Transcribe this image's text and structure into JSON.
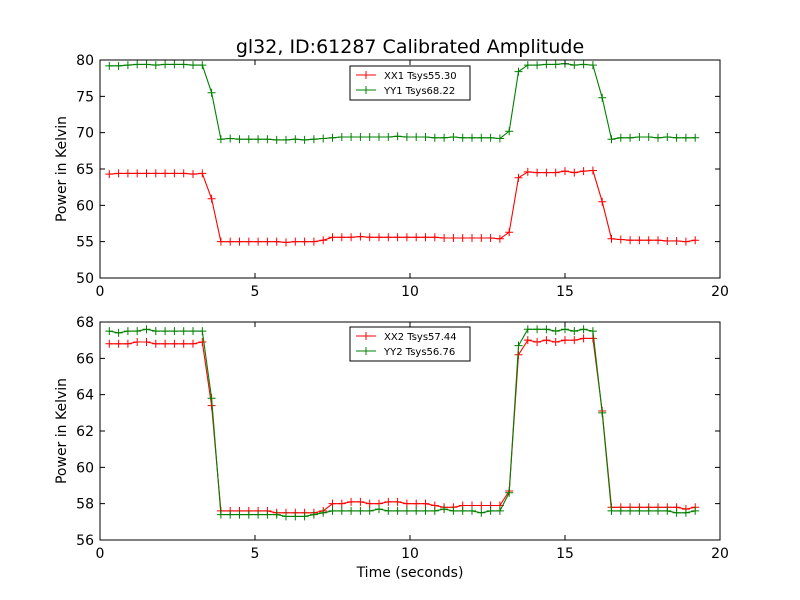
{
  "title": "gl32, ID:61287 Calibrated Amplitude",
  "xlabel": "Time (seconds)",
  "chart_data": [
    {
      "type": "line",
      "xlabel": "",
      "ylabel": "Power in Kelvin",
      "xlim": [
        0,
        20
      ],
      "ylim": [
        50,
        80
      ],
      "xticks": [
        0,
        5,
        10,
        15,
        20
      ],
      "yticks": [
        50,
        55,
        60,
        65,
        70,
        75,
        80
      ],
      "grid": false,
      "legend": "top-center",
      "series": [
        {
          "name": "XX1 Tsys55.30",
          "color": "#ff0000",
          "x": [
            0.3,
            0.6,
            0.9,
            1.2,
            1.5,
            1.8,
            2.1,
            2.4,
            2.7,
            3.0,
            3.3,
            3.6,
            3.9,
            4.2,
            4.5,
            4.8,
            5.1,
            5.4,
            5.7,
            6.0,
            6.3,
            6.6,
            6.9,
            7.2,
            7.5,
            7.8,
            8.1,
            8.4,
            8.7,
            9.0,
            9.3,
            9.6,
            9.9,
            10.2,
            10.5,
            10.8,
            11.1,
            11.4,
            11.7,
            12.0,
            12.3,
            12.6,
            12.9,
            13.2,
            13.5,
            13.8,
            14.1,
            14.4,
            14.7,
            15.0,
            15.3,
            15.6,
            15.9,
            16.2,
            16.5,
            16.8,
            17.1,
            17.4,
            17.7,
            18.0,
            18.3,
            18.6,
            18.9,
            19.2
          ],
          "y": [
            64.3,
            64.4,
            64.4,
            64.4,
            64.4,
            64.4,
            64.4,
            64.4,
            64.4,
            64.3,
            64.4,
            60.9,
            55.0,
            55.0,
            55.0,
            55.0,
            55.0,
            55.0,
            55.0,
            54.9,
            55.0,
            55.0,
            55.0,
            55.2,
            55.6,
            55.6,
            55.6,
            55.7,
            55.6,
            55.6,
            55.6,
            55.6,
            55.6,
            55.6,
            55.6,
            55.6,
            55.5,
            55.5,
            55.5,
            55.5,
            55.5,
            55.5,
            55.4,
            56.3,
            63.8,
            64.6,
            64.5,
            64.5,
            64.5,
            64.7,
            64.5,
            64.7,
            64.8,
            60.5,
            55.4,
            55.3,
            55.2,
            55.2,
            55.2,
            55.2,
            55.1,
            55.1,
            55.0,
            55.2
          ]
        },
        {
          "name": "YY1 Tsys68.22",
          "color": "#008000",
          "x": [
            0.3,
            0.6,
            0.9,
            1.2,
            1.5,
            1.8,
            2.1,
            2.4,
            2.7,
            3.0,
            3.3,
            3.6,
            3.9,
            4.2,
            4.5,
            4.8,
            5.1,
            5.4,
            5.7,
            6.0,
            6.3,
            6.6,
            6.9,
            7.2,
            7.5,
            7.8,
            8.1,
            8.4,
            8.7,
            9.0,
            9.3,
            9.6,
            9.9,
            10.2,
            10.5,
            10.8,
            11.1,
            11.4,
            11.7,
            12.0,
            12.3,
            12.6,
            12.9,
            13.2,
            13.5,
            13.8,
            14.1,
            14.4,
            14.7,
            15.0,
            15.3,
            15.6,
            15.9,
            16.2,
            16.5,
            16.8,
            17.1,
            17.4,
            17.7,
            18.0,
            18.3,
            18.6,
            18.9,
            19.2
          ],
          "y": [
            79.2,
            79.2,
            79.3,
            79.4,
            79.4,
            79.3,
            79.4,
            79.4,
            79.4,
            79.3,
            79.3,
            75.5,
            69.1,
            69.2,
            69.1,
            69.1,
            69.1,
            69.1,
            69.0,
            69.0,
            69.1,
            69.0,
            69.1,
            69.2,
            69.3,
            69.4,
            69.4,
            69.4,
            69.4,
            69.4,
            69.4,
            69.5,
            69.4,
            69.4,
            69.4,
            69.3,
            69.3,
            69.4,
            69.3,
            69.3,
            69.3,
            69.3,
            69.2,
            70.2,
            78.4,
            79.3,
            79.3,
            79.4,
            79.4,
            79.5,
            79.3,
            79.4,
            79.3,
            74.8,
            69.1,
            69.3,
            69.3,
            69.4,
            69.4,
            69.3,
            69.4,
            69.3,
            69.3,
            69.3
          ]
        }
      ]
    },
    {
      "type": "line",
      "xlabel": "Time (seconds)",
      "ylabel": "Power in Kelvin",
      "xlim": [
        0,
        20
      ],
      "ylim": [
        56,
        68
      ],
      "xticks": [
        0,
        5,
        10,
        15,
        20
      ],
      "yticks": [
        56,
        58,
        60,
        62,
        64,
        66,
        68
      ],
      "grid": false,
      "legend": "top-center",
      "series": [
        {
          "name": "XX2 Tsys57.44",
          "color": "#ff0000",
          "x": [
            0.3,
            0.6,
            0.9,
            1.2,
            1.5,
            1.8,
            2.1,
            2.4,
            2.7,
            3.0,
            3.3,
            3.6,
            3.9,
            4.2,
            4.5,
            4.8,
            5.1,
            5.4,
            5.7,
            6.0,
            6.3,
            6.6,
            6.9,
            7.2,
            7.5,
            7.8,
            8.1,
            8.4,
            8.7,
            9.0,
            9.3,
            9.6,
            9.9,
            10.2,
            10.5,
            10.8,
            11.1,
            11.4,
            11.7,
            12.0,
            12.3,
            12.6,
            12.9,
            13.2,
            13.5,
            13.8,
            14.1,
            14.4,
            14.7,
            15.0,
            15.3,
            15.6,
            15.9,
            16.2,
            16.5,
            16.8,
            17.1,
            17.4,
            17.7,
            18.0,
            18.3,
            18.6,
            18.9,
            19.2
          ],
          "y": [
            66.8,
            66.8,
            66.8,
            66.9,
            66.9,
            66.8,
            66.8,
            66.8,
            66.8,
            66.8,
            66.9,
            63.4,
            57.6,
            57.6,
            57.6,
            57.6,
            57.6,
            57.6,
            57.5,
            57.5,
            57.5,
            57.5,
            57.5,
            57.6,
            58.0,
            58.0,
            58.1,
            58.1,
            58.0,
            58.0,
            58.1,
            58.1,
            58.0,
            58.0,
            58.0,
            57.9,
            57.8,
            57.8,
            57.9,
            57.9,
            57.9,
            57.9,
            57.9,
            58.7,
            66.2,
            67.0,
            66.9,
            67.0,
            66.9,
            67.0,
            67.0,
            67.1,
            67.1,
            63.1,
            57.8,
            57.8,
            57.8,
            57.8,
            57.8,
            57.8,
            57.8,
            57.8,
            57.7,
            57.8
          ]
        },
        {
          "name": "YY2 Tsys56.76",
          "color": "#008000",
          "x": [
            0.3,
            0.6,
            0.9,
            1.2,
            1.5,
            1.8,
            2.1,
            2.4,
            2.7,
            3.0,
            3.3,
            3.6,
            3.9,
            4.2,
            4.5,
            4.8,
            5.1,
            5.4,
            5.7,
            6.0,
            6.3,
            6.6,
            6.9,
            7.2,
            7.5,
            7.8,
            8.1,
            8.4,
            8.7,
            9.0,
            9.3,
            9.6,
            9.9,
            10.2,
            10.5,
            10.8,
            11.1,
            11.4,
            11.7,
            12.0,
            12.3,
            12.6,
            12.9,
            13.2,
            13.5,
            13.8,
            14.1,
            14.4,
            14.7,
            15.0,
            15.3,
            15.6,
            15.9,
            16.2,
            16.5,
            16.8,
            17.1,
            17.4,
            17.7,
            18.0,
            18.3,
            18.6,
            18.9,
            19.2
          ],
          "y": [
            67.5,
            67.4,
            67.5,
            67.5,
            67.6,
            67.5,
            67.5,
            67.5,
            67.5,
            67.5,
            67.5,
            63.8,
            57.4,
            57.4,
            57.4,
            57.4,
            57.4,
            57.4,
            57.4,
            57.3,
            57.3,
            57.3,
            57.4,
            57.5,
            57.6,
            57.6,
            57.6,
            57.6,
            57.6,
            57.7,
            57.6,
            57.6,
            57.6,
            57.6,
            57.6,
            57.6,
            57.7,
            57.6,
            57.6,
            57.6,
            57.5,
            57.6,
            57.6,
            58.6,
            66.7,
            67.6,
            67.6,
            67.6,
            67.5,
            67.6,
            67.5,
            67.6,
            67.5,
            63.0,
            57.6,
            57.6,
            57.6,
            57.6,
            57.6,
            57.6,
            57.6,
            57.5,
            57.5,
            57.6
          ]
        }
      ]
    }
  ]
}
